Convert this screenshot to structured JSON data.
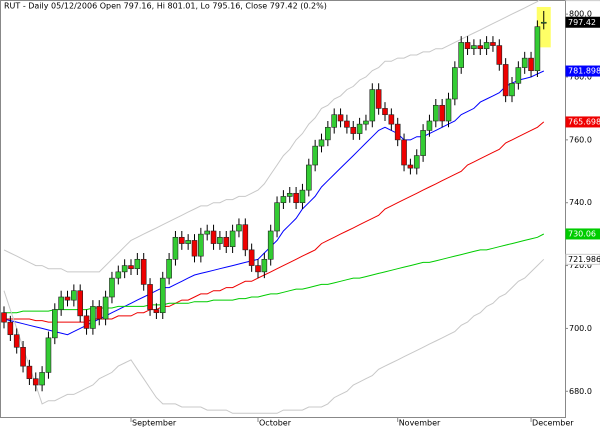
{
  "chart_data": {
    "type": "candlestick",
    "title": "RUT - Daily 05/12/2006 Open 797.16, Hi 801.01, Lo 795.16, Close 797.42 (0.2%)",
    "categories": [
      null,
      null,
      null,
      null,
      null,
      null,
      null,
      null,
      null,
      null,
      null,
      null,
      null,
      null,
      null,
      null,
      null,
      null,
      null,
      null,
      "September",
      null,
      null,
      null,
      null,
      null,
      null,
      null,
      null,
      null,
      null,
      null,
      null,
      null,
      null,
      null,
      null,
      null,
      null,
      null,
      "October",
      null,
      null,
      null,
      null,
      null,
      null,
      null,
      null,
      null,
      null,
      null,
      null,
      null,
      null,
      null,
      null,
      null,
      null,
      null,
      null,
      null,
      "November",
      null,
      null,
      null,
      null,
      null,
      null,
      null,
      null,
      null,
      null,
      null,
      null,
      null,
      null,
      null,
      null,
      null,
      null,
      null,
      null,
      "December",
      null,
      null
    ],
    "open": [
      705,
      702,
      698,
      694,
      688,
      684,
      682,
      686,
      697,
      706,
      710,
      709,
      712,
      704,
      700,
      707,
      703,
      710,
      716,
      718,
      720,
      719,
      722,
      714,
      706,
      705,
      716,
      722,
      729,
      727,
      728,
      723,
      730,
      731,
      727,
      729,
      726,
      731,
      733,
      725,
      720,
      718,
      722,
      731,
      740,
      742,
      743,
      740,
      744,
      752,
      758,
      760,
      764,
      768,
      766,
      764,
      762,
      765,
      766,
      776,
      770,
      768,
      765,
      760,
      752,
      751,
      755,
      763,
      766,
      771,
      766,
      773,
      783,
      791,
      789,
      790,
      789,
      791,
      790,
      784,
      774,
      778,
      783,
      786,
      782,
      797.16
    ],
    "high": [
      707,
      704,
      700,
      696,
      690,
      686,
      688,
      699,
      708,
      712,
      712,
      714,
      714,
      706,
      709,
      709,
      712,
      718,
      720,
      722,
      722,
      724,
      724,
      716,
      708,
      718,
      724,
      731,
      731,
      730,
      730,
      732,
      733,
      733,
      731,
      731,
      733,
      735,
      735,
      727,
      722,
      724,
      733,
      742,
      744,
      745,
      745,
      746,
      754,
      760,
      762,
      766,
      770,
      770,
      768,
      766,
      767,
      768,
      778,
      778,
      772,
      770,
      767,
      762,
      754,
      757,
      765,
      768,
      773,
      773,
      775,
      785,
      793,
      793,
      792,
      792,
      793,
      793,
      792,
      786,
      780,
      785,
      788,
      788,
      798,
      801.01
    ],
    "low": [
      700,
      696,
      692,
      686,
      682,
      680,
      680,
      684,
      695,
      704,
      707,
      707,
      702,
      698,
      698,
      701,
      701,
      708,
      714,
      716,
      717,
      717,
      712,
      704,
      703,
      703,
      714,
      720,
      725,
      725,
      721,
      721,
      728,
      725,
      725,
      724,
      724,
      729,
      723,
      718,
      716,
      716,
      720,
      729,
      738,
      740,
      738,
      738,
      742,
      750,
      756,
      758,
      762,
      764,
      762,
      760,
      760,
      763,
      764,
      768,
      766,
      763,
      758,
      750,
      749,
      749,
      753,
      761,
      764,
      764,
      764,
      771,
      781,
      787,
      787,
      787,
      787,
      788,
      782,
      772,
      772,
      776,
      781,
      780,
      780,
      795.16
    ],
    "close": [
      702,
      698,
      694,
      688,
      684,
      682,
      686,
      697,
      706,
      710,
      709,
      712,
      704,
      700,
      707,
      703,
      710,
      716,
      718,
      720,
      719,
      722,
      714,
      706,
      705,
      716,
      722,
      729,
      727,
      728,
      723,
      730,
      731,
      727,
      729,
      726,
      731,
      733,
      725,
      720,
      718,
      722,
      731,
      740,
      742,
      743,
      740,
      744,
      752,
      758,
      760,
      764,
      768,
      766,
      764,
      762,
      765,
      766,
      776,
      770,
      768,
      765,
      760,
      752,
      751,
      755,
      763,
      766,
      771,
      766,
      773,
      783,
      791,
      789,
      790,
      789,
      791,
      790,
      784,
      774,
      778,
      783,
      786,
      782,
      796,
      797.42
    ],
    "color_up": "#33cc33",
    "color_down": "#ee0000",
    "close_label_fill": "#000000",
    "highlight": "#ffff66",
    "lines": [
      {
        "color": "#c8c8c8",
        "label_fill": "#ffffff",
        "values": [
          725,
          724,
          723,
          722,
          721,
          720,
          720,
          719,
          719,
          719,
          718,
          718,
          718,
          718,
          718,
          718,
          720,
          722,
          724,
          726,
          728,
          729,
          730,
          731,
          732,
          733,
          734,
          735,
          736,
          737,
          738,
          739,
          739,
          740,
          740,
          741,
          741,
          742,
          742,
          743,
          744,
          746,
          749,
          752,
          755,
          757,
          760,
          762,
          765,
          767,
          770,
          771,
          773,
          774,
          776,
          777,
          779,
          780,
          782,
          783,
          785,
          785,
          786,
          786,
          787,
          787,
          788,
          788,
          789,
          789,
          790,
          791,
          792,
          793,
          794,
          795,
          796,
          797,
          798,
          799,
          800,
          801,
          802,
          803,
          804,
          805.895
        ]
      },
      {
        "color": "#0000ff",
        "label_fill": "#0000ff",
        "values": [
          703,
          702.5,
          702,
          701.5,
          701,
          700.5,
          700,
          699.5,
          699,
          698.5,
          698,
          699,
          700,
          701,
          702,
          703,
          704,
          705,
          706,
          707,
          708,
          709,
          710,
          711,
          712,
          713,
          713,
          714,
          715,
          716,
          717,
          717.5,
          718,
          718.5,
          719,
          719.5,
          720,
          720.5,
          721,
          721.5,
          722,
          724,
          726,
          728,
          731,
          733,
          735,
          738,
          740,
          742,
          745,
          747,
          749,
          751,
          753,
          755,
          757,
          759,
          761,
          763,
          764,
          763,
          762,
          760,
          760,
          761,
          761,
          762,
          763,
          764,
          765,
          766,
          768,
          769,
          770,
          772,
          773,
          774,
          775,
          777,
          778,
          779,
          779.5,
          780,
          781,
          781.898
        ]
      },
      {
        "color": "#ee0000",
        "label_fill": "#ee0000",
        "values": [
          703,
          703,
          703,
          703,
          703,
          702.5,
          702.5,
          702,
          702,
          702,
          702,
          702,
          702,
          702,
          703,
          703,
          703,
          703,
          704,
          704,
          704,
          705,
          705,
          706,
          706,
          707,
          707,
          708,
          709,
          709,
          710,
          711,
          711,
          712,
          712,
          713,
          713,
          714,
          715,
          715,
          716,
          717,
          718,
          719,
          720,
          721,
          722,
          723,
          724,
          725,
          727,
          728,
          729,
          730,
          731,
          732,
          733,
          734,
          735,
          736,
          738,
          739,
          740,
          741,
          742,
          743,
          744,
          745,
          746,
          747,
          748,
          749,
          750,
          752,
          753,
          754,
          755,
          756,
          757,
          759,
          760,
          761,
          762,
          763,
          764,
          765.698
        ]
      },
      {
        "color": "#00cc00",
        "label_fill": "#00cc00",
        "values": [
          705,
          705,
          705,
          705.5,
          705.5,
          705.5,
          705.5,
          705.5,
          706,
          706,
          706,
          706,
          706,
          706,
          706.5,
          706.5,
          706.5,
          706.5,
          707,
          707,
          707,
          707,
          707,
          707.5,
          707.5,
          707.5,
          708,
          708,
          708,
          708,
          708.5,
          708.5,
          708.5,
          709,
          709,
          709,
          709,
          709.5,
          709.5,
          710,
          710,
          710.5,
          711,
          711,
          711.5,
          712,
          712.5,
          712.5,
          713,
          713.5,
          714,
          714,
          714.5,
          715,
          715.5,
          716,
          716,
          716.5,
          717,
          717.5,
          718,
          718.5,
          719,
          719.5,
          720,
          720.5,
          721,
          721,
          721.5,
          722,
          722.5,
          723,
          723.5,
          724,
          724.5,
          725,
          725,
          725.5,
          726,
          726.5,
          727,
          727.5,
          728,
          728.5,
          729,
          730.06
        ]
      },
      {
        "color": "#c8c8c8",
        "label_fill": "#ffffff",
        "values": [
          712,
          706,
          700,
          694,
          688,
          682,
          676,
          677,
          677,
          678,
          679,
          679,
          680,
          681,
          682,
          684,
          685,
          686,
          688,
          689,
          690,
          687,
          684,
          681,
          678,
          676,
          676,
          676,
          675,
          675,
          675,
          675,
          674,
          674,
          674,
          674,
          673,
          673,
          673,
          673,
          673,
          673,
          673,
          673,
          674,
          674,
          674,
          674,
          675,
          675,
          675,
          676,
          678,
          679,
          680,
          682,
          683,
          684,
          685,
          687,
          688,
          689,
          690,
          691,
          692,
          693,
          694,
          695,
          696,
          697,
          698,
          699,
          701,
          702,
          704,
          705,
          707,
          708,
          710,
          711,
          713,
          715,
          716,
          718,
          720,
          721.986
        ]
      }
    ],
    "ylim": [
      671.5,
      804.5
    ],
    "yticks": [
      {
        "value": 680,
        "label": "680.0"
      },
      {
        "value": 700,
        "label": "700.0"
      },
      {
        "value": 720,
        "label": "720.0"
      },
      {
        "value": 740,
        "label": "740.0"
      },
      {
        "value": 760,
        "label": "760.0"
      },
      {
        "value": 780,
        "label": "780.0"
      },
      {
        "value": 800,
        "label": "800.0"
      }
    ]
  }
}
